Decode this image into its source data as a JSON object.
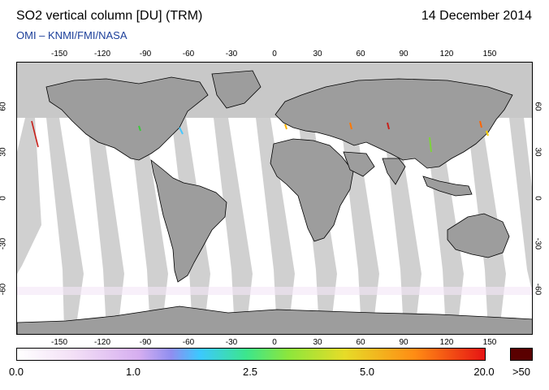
{
  "header": {
    "title": "SO2 vertical column [DU] (TRM)",
    "date": "14 December 2014",
    "credit": "OMI  –  KNMI/FMI/NASA"
  },
  "axes": {
    "lon_ticks": [
      "-150",
      "-120",
      "-90",
      "-60",
      "-30",
      "0",
      "30",
      "60",
      "90",
      "120",
      "150"
    ],
    "lat_ticks": [
      "60",
      "30",
      "0",
      "-30",
      "-60"
    ]
  },
  "map": {
    "projection": "equirectangular",
    "lon_range": [
      -180,
      180
    ],
    "lat_range": [
      -90,
      90
    ],
    "land_color": "#9d9d9d",
    "no_data_color": "#c8c8c8",
    "ocean_color": "#ffffff"
  },
  "colorbar": {
    "labels": [
      "0.0",
      "1.0",
      "2.5",
      "5.0",
      "20.0",
      ">50"
    ],
    "overflow_color": "#5a0000"
  }
}
